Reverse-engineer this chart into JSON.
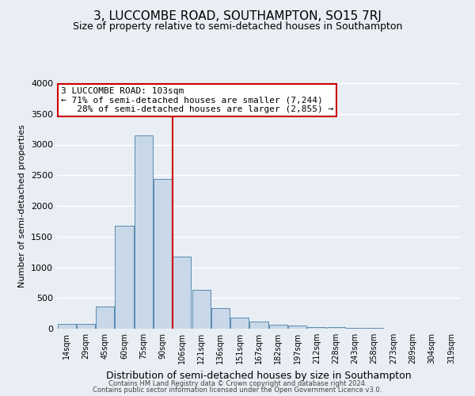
{
  "title": "3, LUCCOMBE ROAD, SOUTHAMPTON, SO15 7RJ",
  "subtitle": "Size of property relative to semi-detached houses in Southampton",
  "xlabel": "Distribution of semi-detached houses by size in Southampton",
  "ylabel": "Number of semi-detached properties",
  "bar_color": "#c8d8e8",
  "bar_edge_color": "#5a8ab0",
  "categories": [
    "14sqm",
    "29sqm",
    "45sqm",
    "60sqm",
    "75sqm",
    "90sqm",
    "106sqm",
    "121sqm",
    "136sqm",
    "151sqm",
    "167sqm",
    "182sqm",
    "197sqm",
    "212sqm",
    "228sqm",
    "243sqm",
    "258sqm",
    "273sqm",
    "289sqm",
    "304sqm",
    "319sqm"
  ],
  "values": [
    75,
    75,
    360,
    1680,
    3150,
    2440,
    1180,
    630,
    330,
    185,
    110,
    65,
    50,
    30,
    20,
    12,
    8,
    5,
    3,
    2,
    2
  ],
  "vline_idx": 6,
  "vline_color": "#cc0000",
  "ann_line1": "3 LUCCOMBE ROAD: 103sqm",
  "ann_line2": "← 71% of semi-detached houses are smaller (7,244)",
  "ann_line3": "   28% of semi-detached houses are larger (2,855) →",
  "annotation_box_color": "white",
  "annotation_box_edge": "#cc0000",
  "ylim": [
    0,
    4000
  ],
  "yticks": [
    0,
    500,
    1000,
    1500,
    2000,
    2500,
    3000,
    3500,
    4000
  ],
  "footer1": "Contains HM Land Registry data © Crown copyright and database right 2024.",
  "footer2": "Contains public sector information licensed under the Open Government Licence v3.0.",
  "background_color": "#e8eef4",
  "grid_color": "#ffffff",
  "title_fontsize": 11,
  "subtitle_fontsize": 9
}
